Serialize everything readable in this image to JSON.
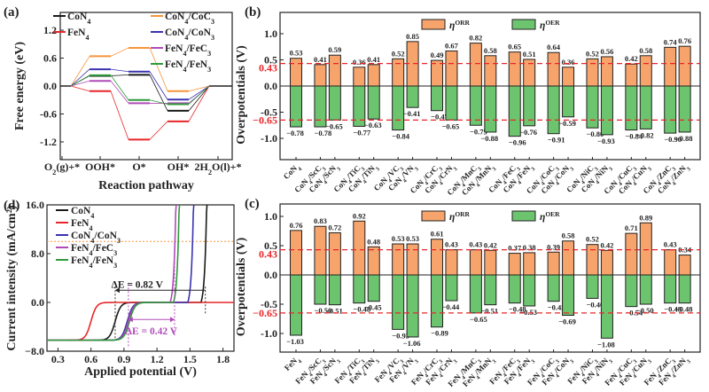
{
  "chart_data": [
    {
      "panel": "(a)",
      "type": "line",
      "xlabel": "Reaction pathway",
      "ylabel": "Free energy (eV)",
      "categories": [
        "O₂(g)+*",
        "OOH*",
        "O*",
        "OH*",
        "2H₂O(l)+*"
      ],
      "yticks": [
        "1.2",
        "0.6",
        "0.0",
        "-0.6",
        "-1.2"
      ],
      "ylim": [
        -1.3,
        1.3
      ],
      "legend": "top",
      "series": [
        {
          "name": "CoN₄",
          "color": "#1a1a1a",
          "values": [
            0.0,
            0.22,
            0.24,
            -0.53,
            0.0
          ]
        },
        {
          "name": "FeN₄",
          "color": "#e8262a",
          "values": [
            0.0,
            -0.11,
            -1.15,
            -0.76,
            0.0
          ]
        },
        {
          "name": "CoN₄/CoC₃",
          "color": "#f5953a",
          "values": [
            0.0,
            0.64,
            0.82,
            -0.11,
            0.0
          ]
        },
        {
          "name": "CoN₄/CoN₃",
          "color": "#3a33b0",
          "values": [
            0.0,
            0.36,
            0.31,
            -0.29,
            0.0
          ]
        },
        {
          "name": "FeN₄/FeC₃",
          "color": "#b04bb8",
          "values": [
            0.0,
            0.11,
            -0.37,
            -0.37,
            0.0
          ]
        },
        {
          "name": "FeN₄/FeN₃",
          "color": "#2e9a3a",
          "values": [
            0.0,
            0.23,
            -0.3,
            -0.39,
            0.0
          ]
        }
      ]
    },
    {
      "panel": "(b)",
      "type": "bar",
      "ylabel": "Overpotentials (V)",
      "ylim": [
        -1.2,
        1.2
      ],
      "yticks": [
        "1.0",
        "0.5",
        "0.0",
        "-0.5",
        "-1.0"
      ],
      "reference_lines": [
        {
          "value": 0.43,
          "label": "0.43"
        },
        {
          "value": -0.65,
          "label": "-0.65"
        }
      ],
      "legend": [
        "η ORR",
        "η OER"
      ],
      "colors": {
        "orr": "#f6a46b",
        "oer": "#6cc46f",
        "ref": "#e8262a"
      },
      "categories": [
        "CoN₄",
        "CoN₄/ScC₃",
        "CoN₄/ScN₃",
        "CoN₄/TiC₃",
        "CoN₄/TiN₃",
        "CoN₄/VC₃",
        "CoN₄/VN₃",
        "CoN₄/CrC₃",
        "CoN₄/CrN₃",
        "CoN₄/MnC₃",
        "CoN₄/MnN₃",
        "CoN₄/FeC₃",
        "CoN₄/FeN₃",
        "CoN₄/CoC₃",
        "CoN₄/CoN₃",
        "CoN₄/NiC₃",
        "CoN₄/NiN₃",
        "CoN₄/CuC₃",
        "CoN₄/CuN₃",
        "CoN₄/ZnC₃",
        "CoN₄/ZnN₃"
      ],
      "series": [
        {
          "name": "η ORR",
          "values": [
            0.53,
            0.41,
            0.59,
            0.36,
            0.41,
            0.52,
            0.85,
            0.49,
            0.67,
            0.82,
            0.58,
            0.65,
            0.51,
            0.64,
            0.36,
            0.52,
            0.56,
            0.42,
            0.58,
            0.74,
            0.76
          ]
        },
        {
          "name": "η OER",
          "values": [
            -0.78,
            -0.78,
            -0.65,
            -0.77,
            -0.63,
            -0.84,
            -0.41,
            -0.47,
            -0.65,
            -0.75,
            -0.88,
            -0.96,
            -0.76,
            -0.91,
            -0.59,
            -0.8,
            -0.93,
            -0.84,
            -0.82,
            -0.9,
            -0.88
          ]
        }
      ]
    },
    {
      "panel": "(c)",
      "type": "bar",
      "ylabel": "Overpotentials (V)",
      "ylim": [
        -1.3,
        1.2
      ],
      "yticks": [
        "1.0",
        "0.5",
        "0.0",
        "-0.5",
        "-1.0"
      ],
      "reference_lines": [
        {
          "value": 0.43,
          "label": "0.43"
        },
        {
          "value": -0.65,
          "label": "-0.65"
        }
      ],
      "legend": [
        "η ORR",
        "η OER"
      ],
      "colors": {
        "orr": "#f6a46b",
        "oer": "#6cc46f",
        "ref": "#e8262a"
      },
      "categories": [
        "FeN₄",
        "FeN₄/ScC₃",
        "FeN₄/ScN₃",
        "FeN₄/TiC₃",
        "FeN₄/TiN₃",
        "FeN₄/VC₃",
        "FeN₄/VN₃",
        "FeN₄/CrC₃",
        "FeN₄/CrN₃",
        "FeN₄/MnC₃",
        "FeN₄/MnN₃",
        "FeN₄/FeC₃",
        "FeN₄/FeN₃",
        "FeN₄/CoC₃",
        "FeN₄/CoN₃",
        "FeN₄/NiC₃",
        "FeN₄/NiN₃",
        "FeN₄/CuC₃",
        "FeN₄/CuN₃",
        "FeN₄/ZnC₃",
        "FeN₄/ZnN₃"
      ],
      "series": [
        {
          "name": "η ORR",
          "values": [
            0.76,
            0.83,
            0.72,
            0.92,
            0.48,
            0.53,
            0.53,
            0.61,
            0.43,
            0.43,
            0.42,
            0.37,
            0.38,
            0.39,
            0.58,
            0.52,
            0.42,
            0.71,
            0.89,
            0.43,
            0.34
          ]
        },
        {
          "name": "η OER",
          "values": [
            -1.03,
            -0.5,
            -0.51,
            -0.48,
            -0.45,
            -0.93,
            -1.06,
            -0.89,
            -0.44,
            -0.65,
            -0.51,
            -0.48,
            -0.53,
            -0.45,
            -0.69,
            -0.4,
            -1.08,
            -0.54,
            -0.5,
            -0.48,
            -0.48
          ]
        }
      ]
    },
    {
      "panel": "(d)",
      "type": "line",
      "xlabel": "Applied potential (V)",
      "ylabel": "Current intensity (mA/cm²)",
      "xlim": [
        0.2,
        1.9
      ],
      "ylim": [
        -8.0,
        16.0
      ],
      "xticks": [
        "0.3",
        "0.6",
        "0.9",
        "1.2",
        "1.5",
        "1.8"
      ],
      "yticks": [
        "16.0",
        "8.0",
        "0.0",
        "-8.0"
      ],
      "reference_line_y": 10.0,
      "legend": "top-left",
      "annotations": [
        {
          "text": "ΔE = 0.82 V",
          "from_x": 1.64,
          "to_x": 0.82,
          "y": 2.0,
          "color": "#1a1a1a"
        },
        {
          "text": "ΔE = 0.42 V",
          "from_x": 0.94,
          "to_x": 1.36,
          "y": -5.0,
          "color": "#b04bb8"
        }
      ],
      "series": [
        {
          "name": "CoN₄",
          "color": "#1a1a1a",
          "onset_low_half": 0.82,
          "onset_high": 1.6
        },
        {
          "name": "FeN₄",
          "color": "#e8262a",
          "onset_low_half": 0.6,
          "onset_high": null
        },
        {
          "name": "CoN₄/CoN₃",
          "color": "#3a33b0",
          "onset_low_half": 0.93,
          "onset_high": 1.48
        },
        {
          "name": "FeN₄/FeC₃",
          "color": "#b04bb8",
          "onset_low_half": 0.94,
          "onset_high": 1.32
        },
        {
          "name": "FeN₄/FeN₃",
          "color": "#2e9a3a",
          "onset_low_half": 0.95,
          "onset_high": 1.35
        }
      ],
      "limiting_current": -6.2
    }
  ],
  "panel_labels": [
    "(a)",
    "(b)",
    "(c)",
    "(d)"
  ]
}
